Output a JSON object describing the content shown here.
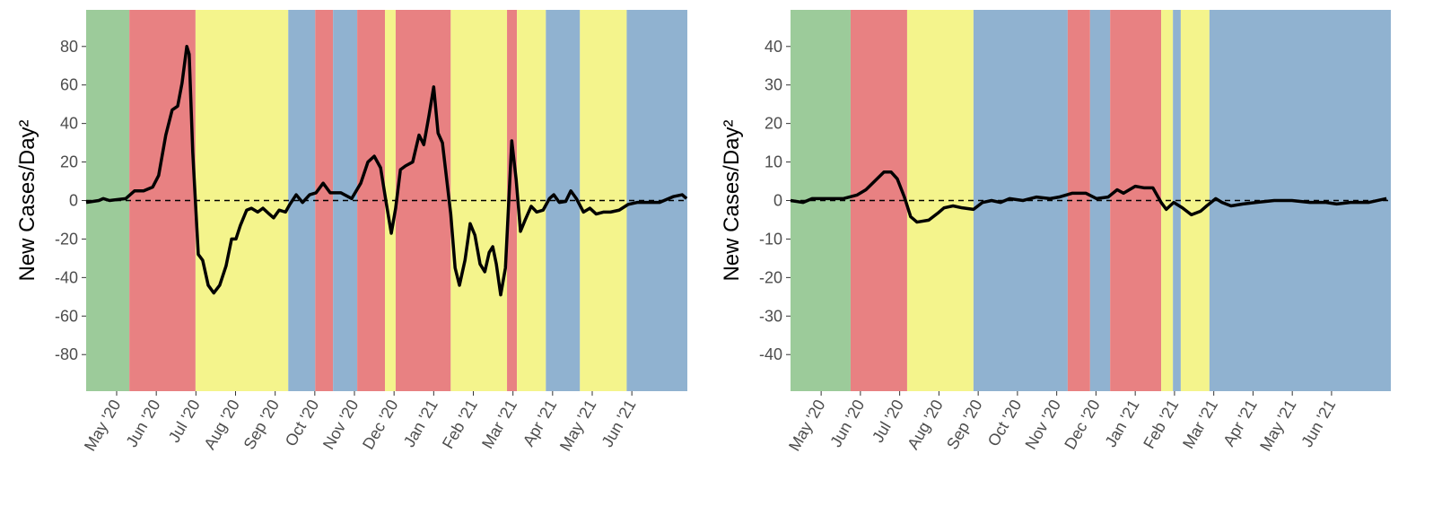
{
  "chart_data": [
    {
      "type": "line",
      "y_label": "New Cases/Day²",
      "xlim": [
        4.23,
        19.4
      ],
      "ylim": [
        -99,
        99
      ],
      "yticks": [
        -80,
        -60,
        -40,
        -20,
        0,
        20,
        40,
        60,
        80
      ],
      "xticks": [
        {
          "value": 5,
          "label": "May '20"
        },
        {
          "value": 6,
          "label": "Jun '20"
        },
        {
          "value": 7,
          "label": "Jul '20"
        },
        {
          "value": 8,
          "label": "Aug '20"
        },
        {
          "value": 9,
          "label": "Sep '20"
        },
        {
          "value": 10,
          "label": "Oct '20"
        },
        {
          "value": 11,
          "label": "Nov '20"
        },
        {
          "value": 12,
          "label": "Dec '20"
        },
        {
          "value": 13,
          "label": "Jan '21"
        },
        {
          "value": 14,
          "label": "Feb '21"
        },
        {
          "value": 15,
          "label": "Mar '21"
        },
        {
          "value": 16,
          "label": "Apr '21"
        },
        {
          "value": 17,
          "label": "May '21"
        },
        {
          "value": 18,
          "label": "Jun '21"
        }
      ],
      "reference_line": 0,
      "regions": [
        {
          "start": 4.23,
          "end": 5.32,
          "color": "#9ccb9a"
        },
        {
          "start": 5.32,
          "end": 6.99,
          "color": "#e88182"
        },
        {
          "start": 6.99,
          "end": 9.33,
          "color": "#f4f48c"
        },
        {
          "start": 9.33,
          "end": 10.01,
          "color": "#90b2d0"
        },
        {
          "start": 10.01,
          "end": 10.46,
          "color": "#e88182"
        },
        {
          "start": 10.46,
          "end": 11.07,
          "color": "#90b2d0"
        },
        {
          "start": 11.07,
          "end": 11.77,
          "color": "#e88182"
        },
        {
          "start": 11.77,
          "end": 12.04,
          "color": "#f4f48c"
        },
        {
          "start": 12.04,
          "end": 13.43,
          "color": "#e88182"
        },
        {
          "start": 13.43,
          "end": 14.85,
          "color": "#f4f48c"
        },
        {
          "start": 14.85,
          "end": 15.1,
          "color": "#e88182"
        },
        {
          "start": 15.1,
          "end": 15.83,
          "color": "#f4f48c"
        },
        {
          "start": 15.83,
          "end": 16.69,
          "color": "#90b2d0"
        },
        {
          "start": 16.69,
          "end": 17.87,
          "color": "#f4f48c"
        },
        {
          "start": 17.87,
          "end": 19.4,
          "color": "#90b2d0"
        }
      ],
      "x": [
        4.23,
        4.55,
        4.66,
        4.82,
        5.23,
        5.45,
        5.68,
        5.91,
        6.06,
        6.24,
        6.4,
        6.54,
        6.65,
        6.77,
        6.83,
        6.92,
        7.06,
        7.17,
        7.31,
        7.45,
        7.6,
        7.76,
        7.9,
        8.01,
        8.12,
        8.28,
        8.4,
        8.56,
        8.69,
        8.85,
        8.96,
        9.1,
        9.26,
        9.37,
        9.53,
        9.69,
        9.87,
        10.03,
        10.21,
        10.39,
        10.66,
        10.93,
        11.16,
        11.34,
        11.5,
        11.66,
        11.8,
        11.93,
        12.04,
        12.16,
        12.29,
        12.47,
        12.63,
        12.75,
        12.88,
        13.0,
        13.11,
        13.22,
        13.43,
        13.54,
        13.65,
        13.79,
        13.92,
        14.04,
        14.17,
        14.29,
        14.4,
        14.49,
        14.58,
        14.69,
        14.81,
        14.97,
        15.08,
        15.19,
        15.31,
        15.46,
        15.6,
        15.76,
        15.92,
        16.03,
        16.17,
        16.33,
        16.46,
        16.6,
        16.78,
        16.94,
        17.1,
        17.28,
        17.46,
        17.68,
        17.91,
        18.13,
        18.36,
        18.7,
        19.04,
        19.27,
        19.38
      ],
      "series": [
        {
          "color": "#000000",
          "values": [
            -1,
            0,
            1,
            0,
            1,
            5,
            5,
            7,
            13,
            34,
            47,
            49,
            61,
            80,
            76,
            25,
            -28,
            -31,
            -44,
            -48,
            -44,
            -34,
            -20,
            -20,
            -13,
            -5,
            -4,
            -6,
            -4,
            -7,
            -9,
            -5,
            -6,
            -2,
            3,
            -1,
            3,
            4,
            9,
            4,
            4,
            1,
            9,
            20,
            23,
            17,
            -1,
            -17,
            -4,
            16,
            18,
            20,
            34,
            29,
            44,
            59,
            35,
            30,
            -7,
            -35,
            -44,
            -31,
            -12,
            -18,
            -33,
            -37,
            -27,
            -24,
            -33,
            -49,
            -35,
            31,
            11,
            -16,
            -10,
            -3,
            -6,
            -5,
            1,
            3,
            -1,
            -0.5,
            5,
            1,
            -6,
            -4,
            -7,
            -6,
            -6,
            -5,
            -2,
            -1,
            -1,
            -1,
            2,
            3,
            1
          ]
        }
      ]
    },
    {
      "type": "line",
      "y_label": "New Cases/Day²",
      "xlim": [
        4.22,
        19.51
      ],
      "ylim": [
        -49.5,
        49.5
      ],
      "yticks": [
        -40,
        -30,
        -20,
        -10,
        0,
        10,
        20,
        30,
        40
      ],
      "xticks": [
        {
          "value": 5,
          "label": "May '20"
        },
        {
          "value": 6,
          "label": "Jun '20"
        },
        {
          "value": 7,
          "label": "Jul '20"
        },
        {
          "value": 8,
          "label": "Aug '20"
        },
        {
          "value": 9,
          "label": "Sep '20"
        },
        {
          "value": 10,
          "label": "Oct '20"
        },
        {
          "value": 11,
          "label": "Nov '20"
        },
        {
          "value": 12,
          "label": "Dec '20"
        },
        {
          "value": 13,
          "label": "Jan '21"
        },
        {
          "value": 14,
          "label": "Feb '21"
        },
        {
          "value": 15,
          "label": "Mar '21"
        },
        {
          "value": 16,
          "label": "Apr '21"
        },
        {
          "value": 17,
          "label": "May '21"
        },
        {
          "value": 18,
          "label": "Jun '21"
        }
      ],
      "reference_line": 0,
      "regions": [
        {
          "start": 4.22,
          "end": 5.75,
          "color": "#9ccb9a"
        },
        {
          "start": 5.75,
          "end": 7.19,
          "color": "#e88182"
        },
        {
          "start": 7.19,
          "end": 8.88,
          "color": "#f4f48c"
        },
        {
          "start": 8.88,
          "end": 11.28,
          "color": "#90b2d0"
        },
        {
          "start": 11.28,
          "end": 11.85,
          "color": "#e88182"
        },
        {
          "start": 11.85,
          "end": 12.36,
          "color": "#90b2d0"
        },
        {
          "start": 12.36,
          "end": 13.66,
          "color": "#e88182"
        },
        {
          "start": 13.66,
          "end": 13.96,
          "color": "#f4f48c"
        },
        {
          "start": 13.96,
          "end": 14.16,
          "color": "#90b2d0"
        },
        {
          "start": 14.16,
          "end": 14.89,
          "color": "#f4f48c"
        },
        {
          "start": 14.89,
          "end": 19.51,
          "color": "#90b2d0"
        }
      ],
      "x": [
        4.22,
        4.54,
        4.77,
        5.11,
        5.57,
        5.91,
        6.14,
        6.37,
        6.6,
        6.78,
        6.94,
        7.12,
        7.28,
        7.44,
        7.74,
        7.97,
        8.13,
        8.36,
        8.59,
        8.88,
        9.11,
        9.34,
        9.57,
        9.8,
        10.14,
        10.48,
        10.83,
        11.06,
        11.4,
        11.74,
        12.01,
        12.31,
        12.54,
        12.7,
        13.0,
        13.22,
        13.45,
        13.66,
        13.79,
        13.98,
        14.2,
        14.43,
        14.66,
        14.82,
        15.05,
        15.21,
        15.44,
        15.74,
        16.08,
        16.54,
        16.99,
        17.45,
        17.86,
        18.13,
        18.48,
        18.94,
        19.4
      ],
      "series": [
        {
          "color": "#000000",
          "values": [
            0,
            -0.5,
            0.5,
            0.5,
            0.5,
            1.4,
            2.8,
            5.1,
            7.4,
            7.4,
            5.6,
            0.9,
            -4.2,
            -5.6,
            -5.1,
            -3.3,
            -1.9,
            -1.4,
            -1.9,
            -2.3,
            -0.5,
            0,
            -0.5,
            0.5,
            0,
            0.9,
            0.5,
            0.9,
            1.9,
            1.9,
            0.5,
            0.9,
            2.8,
            1.9,
            3.7,
            3.3,
            3.3,
            -0.5,
            -2.3,
            -0.5,
            -1.9,
            -3.7,
            -2.8,
            -1.4,
            0.5,
            -0.5,
            -1.4,
            -0.9,
            -0.5,
            0,
            0,
            -0.5,
            -0.5,
            -0.9,
            -0.5,
            -0.5,
            0.5
          ]
        }
      ]
    }
  ]
}
